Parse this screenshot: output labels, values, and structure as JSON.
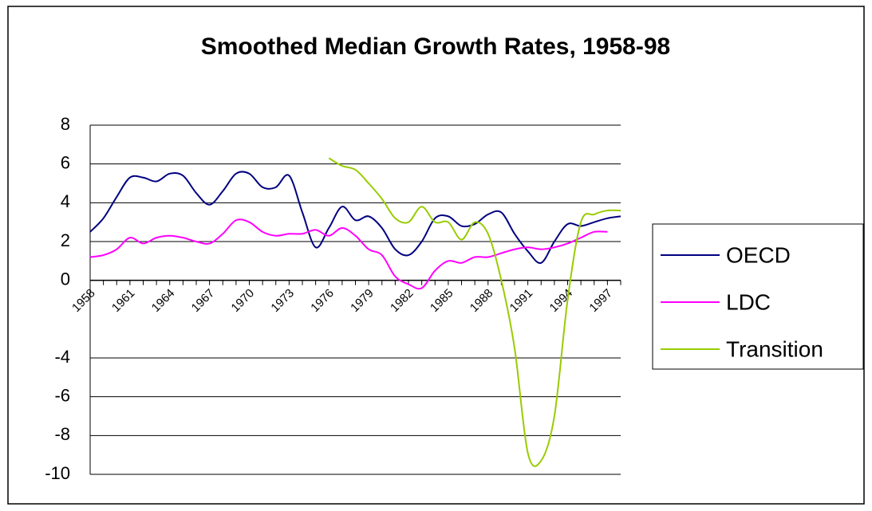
{
  "chart_data": {
    "type": "line",
    "title": "Smoothed Median Growth Rates, 1958-98",
    "categories": [
      "1958",
      null,
      null,
      "1961",
      null,
      null,
      "1964",
      null,
      null,
      "1967",
      null,
      null,
      "1970",
      null,
      null,
      "1973",
      null,
      null,
      "1976",
      null,
      null,
      "1979",
      null,
      null,
      "1982",
      null,
      null,
      "1985",
      null,
      null,
      "1988",
      null,
      null,
      "1991",
      null,
      null,
      "1994",
      null,
      null,
      "1997",
      null
    ],
    "series": [
      {
        "name": "OECD",
        "color": "#000080",
        "values": [
          2.5,
          3.2,
          4.3,
          5.3,
          5.3,
          5.1,
          5.5,
          5.4,
          4.5,
          3.9,
          4.6,
          5.5,
          5.5,
          4.8,
          4.8,
          5.4,
          3.5,
          1.7,
          2.7,
          3.8,
          3.1,
          3.3,
          2.7,
          1.6,
          1.3,
          2.0,
          3.2,
          3.3,
          2.8,
          2.9,
          3.4,
          3.5,
          2.4,
          1.5,
          0.9,
          2.0,
          2.9,
          2.8,
          3.0,
          3.2,
          3.3
        ]
      },
      {
        "name": "LDC",
        "color": "#ff00ff",
        "values": [
          1.2,
          1.3,
          1.6,
          2.2,
          1.9,
          2.2,
          2.3,
          2.2,
          2.0,
          1.9,
          2.4,
          3.1,
          3.0,
          2.5,
          2.3,
          2.4,
          2.4,
          2.6,
          2.3,
          2.7,
          2.3,
          1.6,
          1.3,
          0.2,
          -0.2,
          -0.4,
          0.5,
          1.0,
          0.9,
          1.2,
          1.2,
          1.4,
          1.6,
          1.7,
          1.6,
          1.7,
          1.9,
          2.2,
          2.5,
          2.5,
          null
        ]
      },
      {
        "name": "Transition",
        "color": "#99cc00",
        "values": [
          null,
          null,
          null,
          null,
          null,
          null,
          null,
          null,
          null,
          null,
          null,
          null,
          null,
          null,
          null,
          null,
          null,
          null,
          6.3,
          5.9,
          5.7,
          5.0,
          4.2,
          3.2,
          3.0,
          3.8,
          3.0,
          3.0,
          2.1,
          3.0,
          2.4,
          0.0,
          -3.5,
          -8.9,
          -9.3,
          -7.0,
          -1.0,
          3.0,
          3.4,
          3.6,
          3.6
        ]
      }
    ],
    "ylim": [
      -10,
      8
    ],
    "yticks": [
      -10,
      -8,
      -6,
      -4,
      0,
      2,
      4,
      6,
      8
    ],
    "grid": true,
    "legend": "right"
  }
}
